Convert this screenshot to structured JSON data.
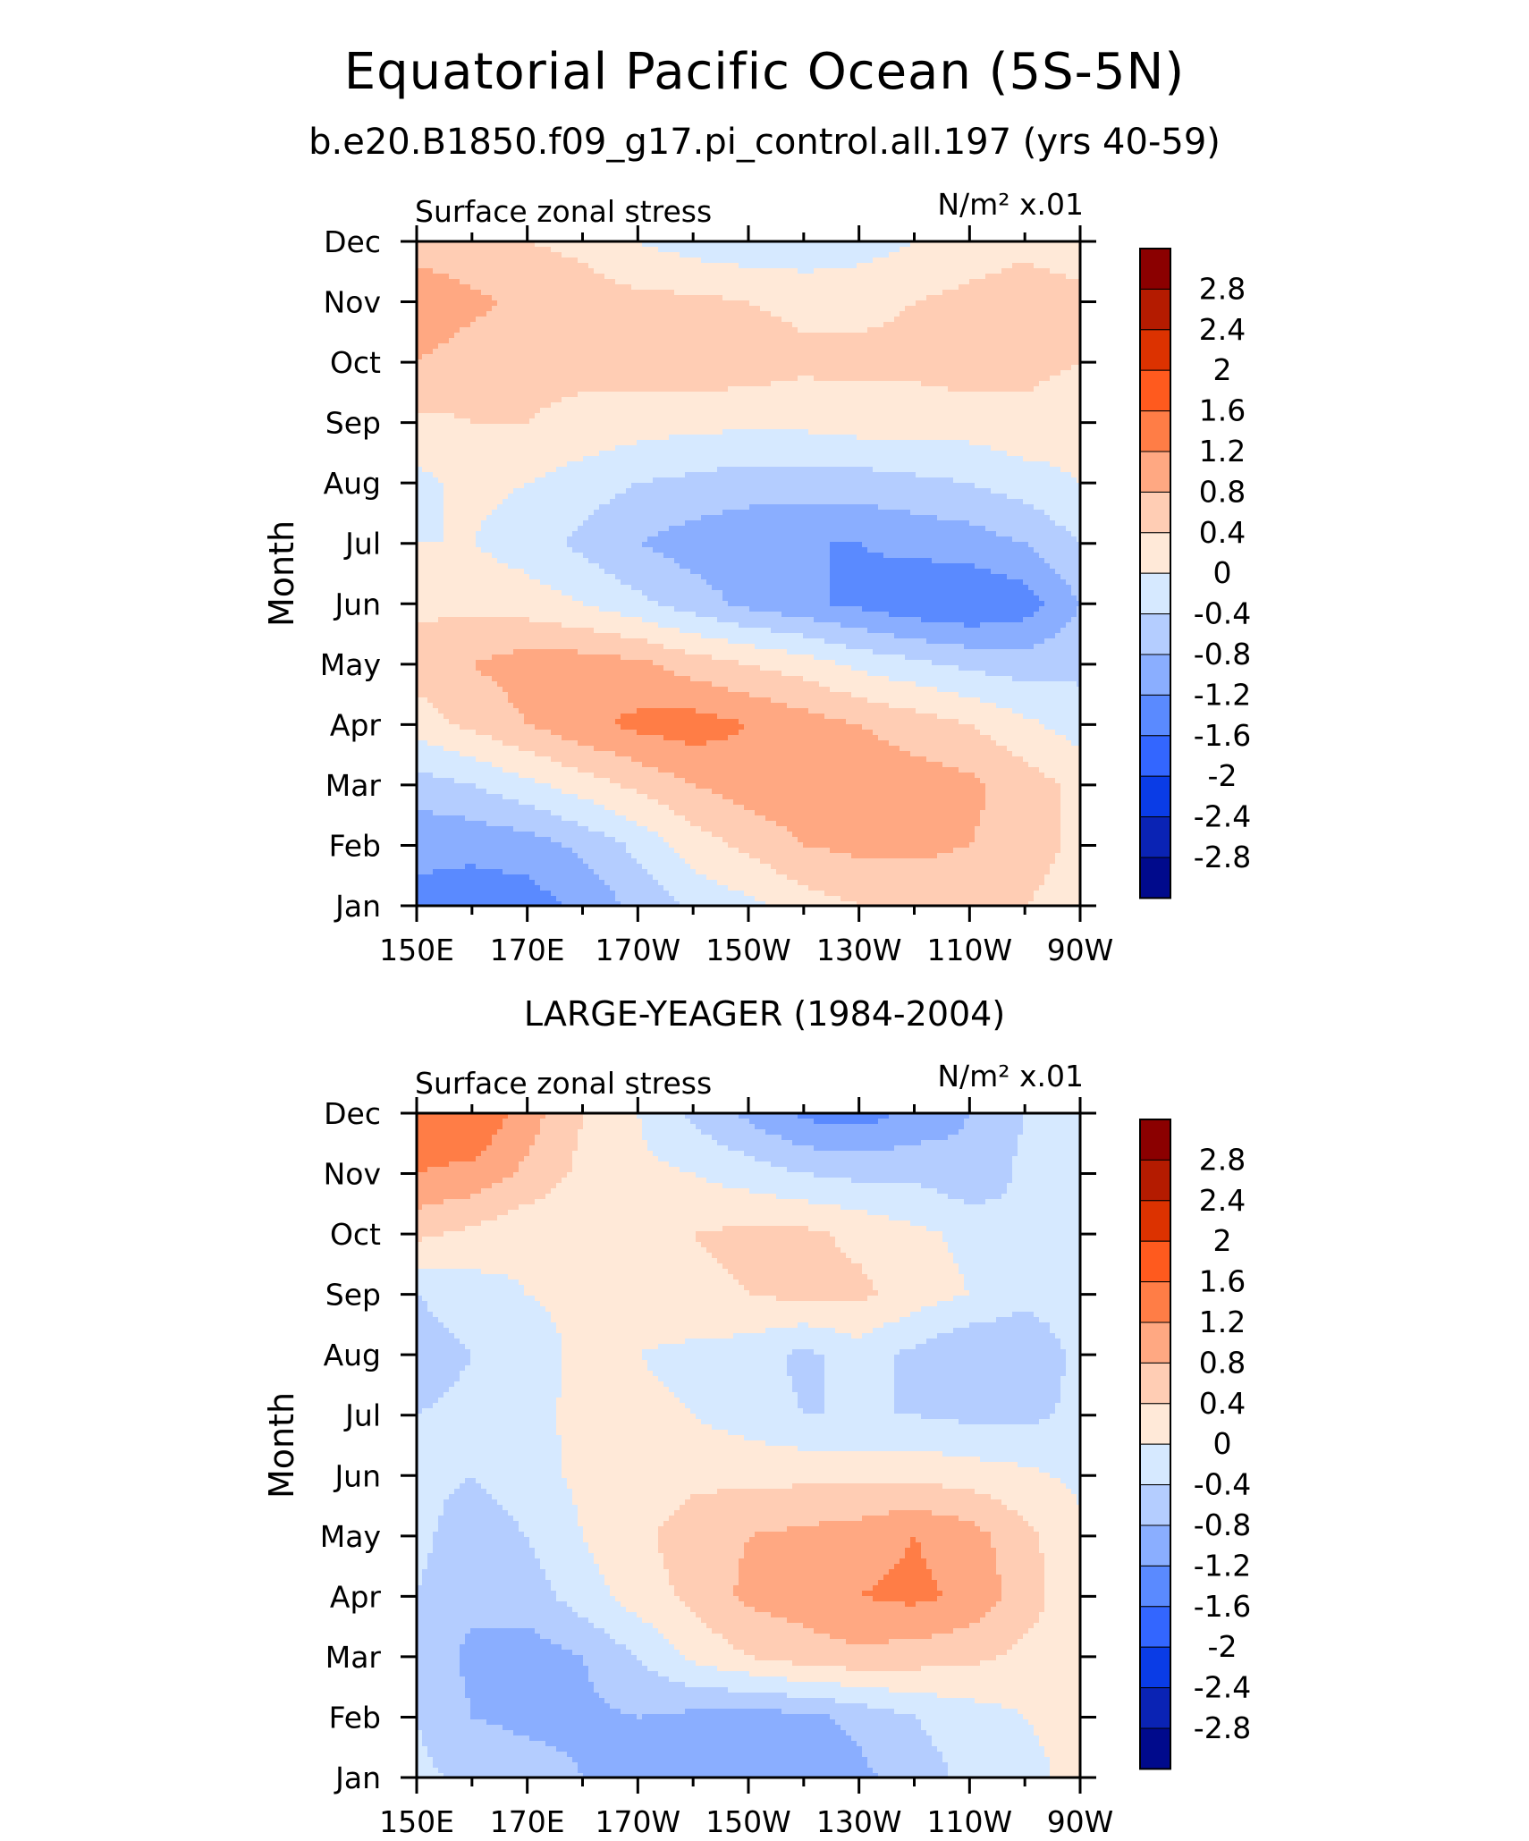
{
  "header": {
    "title": "Equatorial Pacific Ocean (5S-5N)",
    "subtitle": "b.e20.B1850.f09_g17.pi_control.all.197 (yrs 40-59)",
    "panel2_title": "LARGE-YEAGER (1984-2004)"
  },
  "chart_data": [
    {
      "type": "heatmap",
      "subtype": "filled-contour (Hovmoller)",
      "left_label": "Surface zonal stress",
      "right_label": "N/m² x.01",
      "ylabel": "Month",
      "x_tick_labels": [
        "150E",
        "170E",
        "170W",
        "150W",
        "130W",
        "110W",
        "90W"
      ],
      "y_tick_labels": [
        "Jan",
        "Feb",
        "Mar",
        "Apr",
        "May",
        "Jun",
        "Jul",
        "Aug",
        "Sep",
        "Oct",
        "Nov",
        "Dec"
      ],
      "colorbar": {
        "labels": [
          "2.8",
          "2.4",
          "2",
          "1.6",
          "1.2",
          "0.8",
          "0.4",
          "0",
          "-0.4",
          "-0.8",
          "-1.2",
          "-1.6",
          "-2",
          "-2.4",
          "-2.8"
        ],
        "colors": [
          "#8b0000",
          "#b41b00",
          "#dc3200",
          "#ff5a1e",
          "#ff7d46",
          "#ffa882",
          "#ffcdb4",
          "#ffe9d8",
          "#d6e9ff",
          "#b4cdff",
          "#8aaeff",
          "#5a8aff",
          "#3366ff",
          "#0a3ce6",
          "#0a23b4",
          "#000a8c"
        ]
      },
      "values": [
        [
          -1.3,
          -1.4,
          -1.4,
          -1.1,
          -0.7,
          -0.3,
          -0.1,
          0.2,
          0.4,
          0.5,
          0.5,
          0.4,
          0.2
        ],
        [
          -1.1,
          -1.1,
          -1.0,
          -0.7,
          -0.3,
          0.2,
          0.5,
          0.8,
          0.9,
          0.9,
          0.8,
          0.6,
          0.3
        ],
        [
          -0.6,
          -0.4,
          -0.1,
          0.2,
          0.5,
          0.8,
          1.0,
          1.1,
          1.1,
          1.0,
          0.9,
          0.6,
          0.3
        ],
        [
          0.2,
          0.5,
          0.8,
          1.1,
          1.3,
          1.4,
          1.2,
          1.0,
          0.8,
          0.6,
          0.4,
          0.1,
          -0.2
        ],
        [
          0.6,
          0.8,
          1.0,
          1.0,
          0.9,
          0.6,
          0.4,
          0.2,
          -0.1,
          -0.3,
          -0.5,
          -0.6,
          -0.5
        ],
        [
          0.3,
          0.3,
          0.2,
          0.0,
          -0.3,
          -0.6,
          -0.9,
          -1.1,
          -1.3,
          -1.5,
          -1.6,
          -1.4,
          -0.8
        ],
        [
          0.0,
          0.0,
          -0.2,
          -0.5,
          -0.8,
          -1.0,
          -1.1,
          -1.2,
          -1.2,
          -1.1,
          -1.0,
          -0.8,
          -0.4
        ],
        [
          -0.1,
          0.1,
          0.0,
          -0.2,
          -0.4,
          -0.5,
          -0.6,
          -0.6,
          -0.6,
          -0.5,
          -0.4,
          -0.2,
          0.0
        ],
        [
          0.3,
          0.4,
          0.4,
          0.3,
          0.2,
          0.1,
          0.1,
          0.1,
          0.2,
          0.2,
          0.2,
          0.3,
          0.2
        ],
        [
          0.8,
          0.6,
          0.5,
          0.5,
          0.6,
          0.7,
          0.6,
          0.5,
          0.5,
          0.5,
          0.6,
          0.5,
          0.4
        ],
        [
          1.1,
          0.9,
          0.7,
          0.6,
          0.5,
          0.5,
          0.4,
          0.3,
          0.3,
          0.4,
          0.5,
          0.6,
          0.5
        ],
        [
          0.6,
          0.5,
          0.4,
          0.3,
          0.0,
          -0.2,
          -0.3,
          -0.3,
          -0.2,
          0.0,
          0.2,
          0.3,
          0.2
        ]
      ]
    },
    {
      "type": "heatmap",
      "subtype": "filled-contour (Hovmoller)",
      "left_label": "Surface zonal stress",
      "right_label": "N/m² x.01",
      "ylabel": "Month",
      "x_tick_labels": [
        "150E",
        "170E",
        "170W",
        "150W",
        "130W",
        "110W",
        "90W"
      ],
      "y_tick_labels": [
        "Jan",
        "Feb",
        "Mar",
        "Apr",
        "May",
        "Jun",
        "Jul",
        "Aug",
        "Sep",
        "Oct",
        "Nov",
        "Dec"
      ],
      "colorbar": {
        "labels": [
          "2.8",
          "2.4",
          "2",
          "1.6",
          "1.2",
          "0.8",
          "0.4",
          "0",
          "-0.4",
          "-0.8",
          "-1.2",
          "-1.6",
          "-2",
          "-2.4",
          "-2.8"
        ],
        "colors": [
          "#8b0000",
          "#b41b00",
          "#dc3200",
          "#ff5a1e",
          "#ff7d46",
          "#ffa882",
          "#ffcdb4",
          "#ffe9d8",
          "#d6e9ff",
          "#b4cdff",
          "#8aaeff",
          "#5a8aff",
          "#3366ff",
          "#0a3ce6",
          "#0a23b4",
          "#000a8c"
        ]
      },
      "values": [
        [
          -0.3,
          -0.5,
          -0.6,
          -0.8,
          -1.0,
          -1.1,
          -1.2,
          -1.1,
          -0.9,
          -0.6,
          -0.3,
          -0.1,
          0.1
        ],
        [
          -0.4,
          -0.8,
          -0.9,
          -0.9,
          -0.8,
          -0.9,
          -1.0,
          -0.9,
          -0.7,
          -0.4,
          -0.2,
          0.0,
          0.1
        ],
        [
          -0.5,
          -0.9,
          -1.0,
          -0.8,
          -0.4,
          0.1,
          0.4,
          0.6,
          0.7,
          0.6,
          0.5,
          0.3,
          0.1
        ],
        [
          -0.4,
          -0.7,
          -0.6,
          -0.2,
          0.2,
          0.5,
          0.9,
          1.0,
          1.2,
          1.3,
          1.1,
          0.6,
          0.1
        ],
        [
          -0.3,
          -0.6,
          -0.4,
          0.0,
          0.3,
          0.6,
          0.8,
          0.9,
          1.0,
          1.2,
          1.0,
          0.5,
          0.1
        ],
        [
          -0.3,
          -0.4,
          -0.2,
          0.1,
          0.2,
          0.3,
          0.3,
          0.3,
          0.3,
          0.3,
          0.2,
          0.1,
          -0.1
        ],
        [
          -0.4,
          -0.3,
          -0.1,
          0.1,
          0.1,
          0.0,
          -0.2,
          -0.4,
          -0.4,
          -0.4,
          -0.5,
          -0.5,
          -0.3
        ],
        [
          -0.6,
          -0.4,
          -0.2,
          0.1,
          0.0,
          -0.1,
          -0.2,
          -0.5,
          -0.2,
          -0.5,
          -0.8,
          -0.7,
          -0.3
        ],
        [
          -0.4,
          -0.2,
          0.0,
          0.1,
          0.2,
          0.3,
          0.4,
          0.5,
          0.5,
          0.2,
          0.0,
          -0.3,
          -0.2
        ],
        [
          0.5,
          0.3,
          0.1,
          0.1,
          0.3,
          0.4,
          0.5,
          0.5,
          0.3,
          0.1,
          -0.1,
          -0.4,
          -0.1
        ],
        [
          1.2,
          1.1,
          0.7,
          0.3,
          0.1,
          0.0,
          -0.2,
          -0.4,
          -0.5,
          -0.5,
          -0.7,
          -0.3,
          0.0
        ],
        [
          1.4,
          1.6,
          1.0,
          0.4,
          0.0,
          -0.5,
          -0.9,
          -1.3,
          -1.4,
          -1.1,
          -0.8,
          -0.4,
          0.0
        ]
      ]
    }
  ]
}
